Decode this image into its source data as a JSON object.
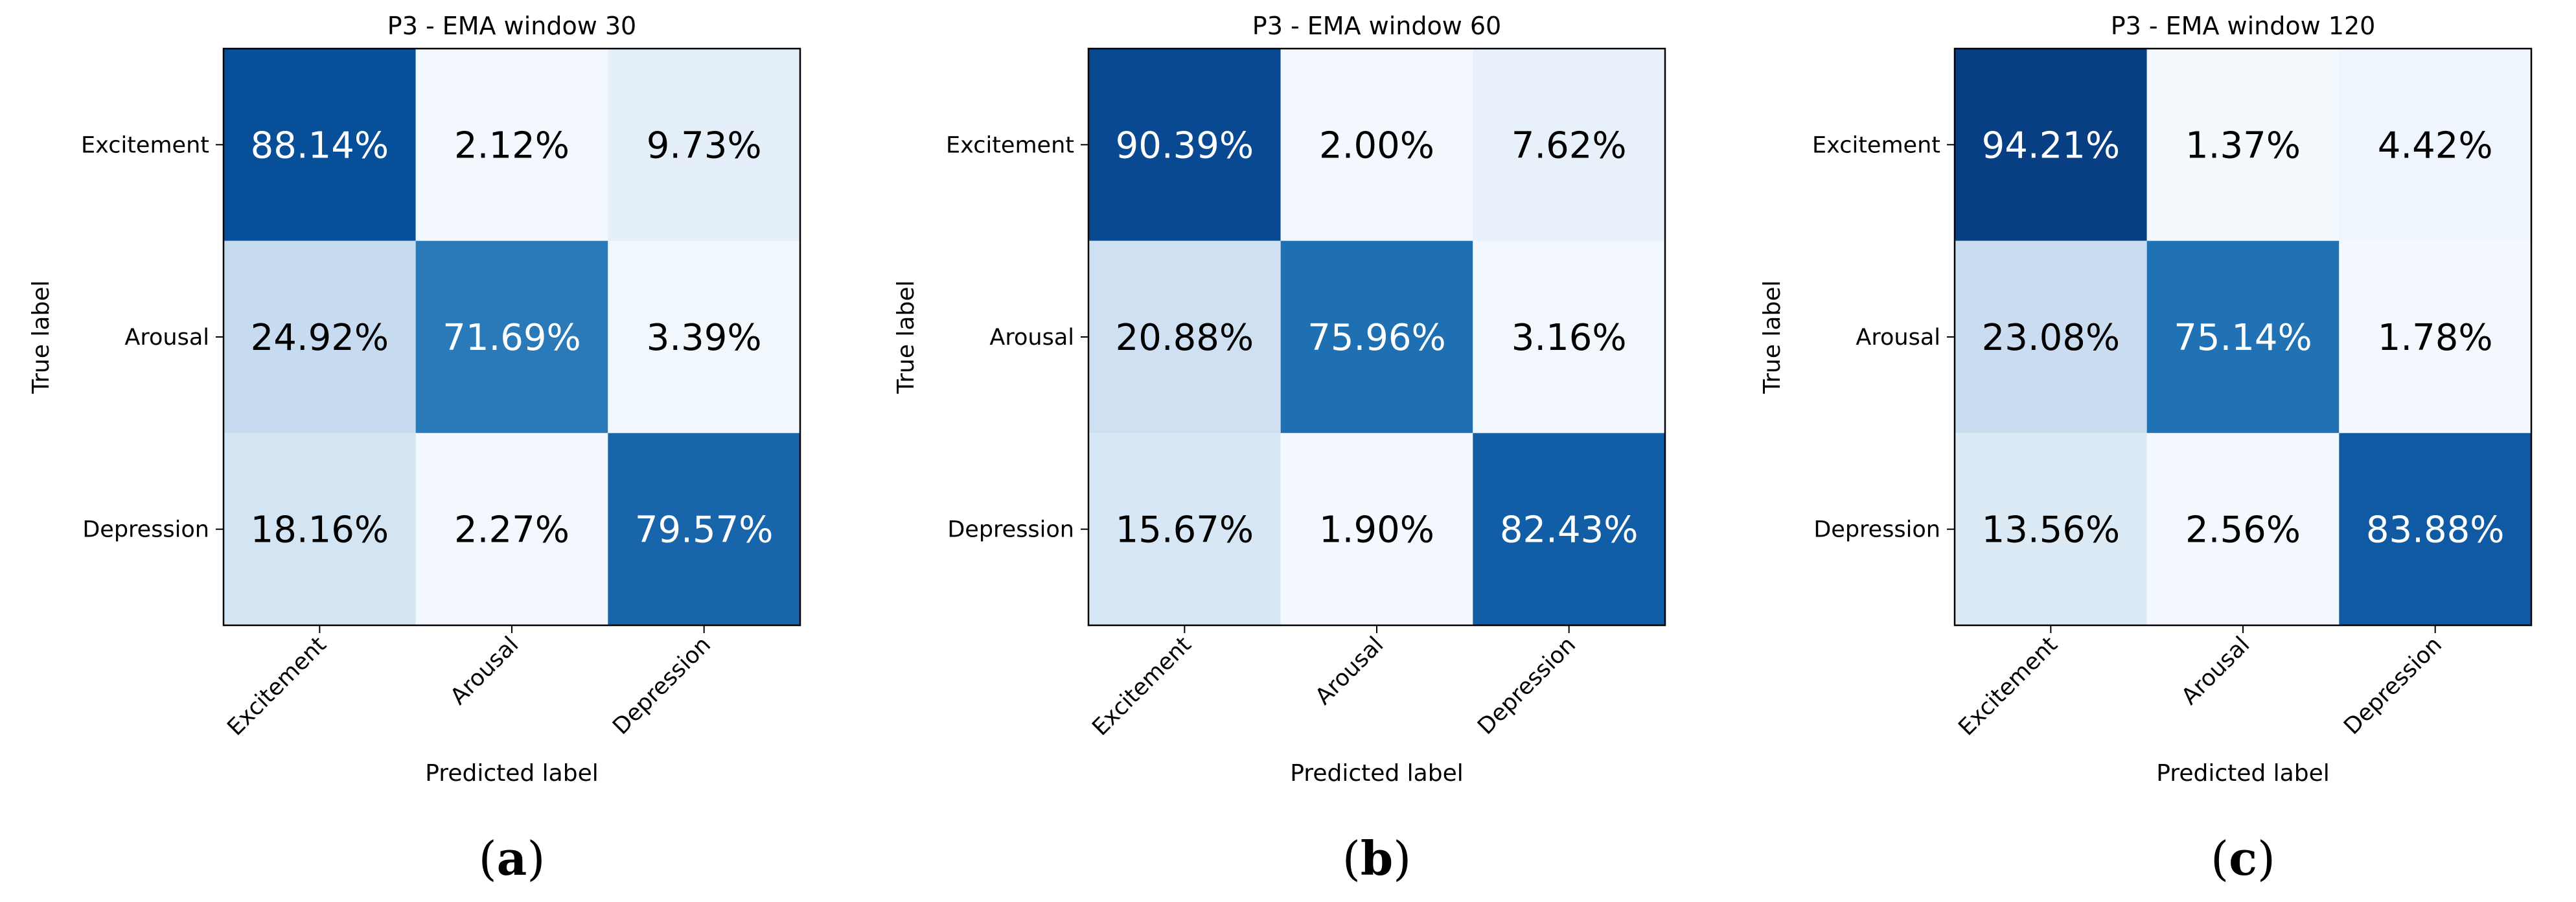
{
  "chart_data": [
    {
      "type": "heatmap",
      "caption": "a",
      "title": "P3 - EMA window 30",
      "xlabel": "Predicted label",
      "ylabel": "True label",
      "x_categories": [
        "Excitement",
        "Arousal",
        "Depression"
      ],
      "y_categories": [
        "Excitement",
        "Arousal",
        "Depression"
      ],
      "values": [
        [
          88.14,
          2.12,
          9.73
        ],
        [
          24.92,
          71.69,
          3.39
        ],
        [
          18.16,
          2.27,
          79.57
        ]
      ],
      "labels": [
        [
          "88.14%",
          "2.12%",
          "9.73%"
        ],
        [
          "24.92%",
          "71.69%",
          "3.39%"
        ],
        [
          "18.16%",
          "2.27%",
          "79.57%"
        ]
      ],
      "colormap": "Blues",
      "vmin": 0,
      "vmax": 100
    },
    {
      "type": "heatmap",
      "caption": "b",
      "title": "P3 - EMA window 60",
      "xlabel": "Predicted label",
      "ylabel": "True label",
      "x_categories": [
        "Excitement",
        "Arousal",
        "Depression"
      ],
      "y_categories": [
        "Excitement",
        "Arousal",
        "Depression"
      ],
      "values": [
        [
          90.39,
          2.0,
          7.62
        ],
        [
          20.88,
          75.96,
          3.16
        ],
        [
          15.67,
          1.9,
          82.43
        ]
      ],
      "labels": [
        [
          "90.39%",
          "2.00%",
          "7.62%"
        ],
        [
          "20.88%",
          "75.96%",
          "3.16%"
        ],
        [
          "15.67%",
          "1.90%",
          "82.43%"
        ]
      ],
      "colormap": "Blues",
      "vmin": 0,
      "vmax": 100
    },
    {
      "type": "heatmap",
      "caption": "c",
      "title": "P3 - EMA window 120",
      "xlabel": "Predicted label",
      "ylabel": "True label",
      "x_categories": [
        "Excitement",
        "Arousal",
        "Depression"
      ],
      "y_categories": [
        "Excitement",
        "Arousal",
        "Depression"
      ],
      "values": [
        [
          94.21,
          1.37,
          4.42
        ],
        [
          23.08,
          75.14,
          1.78
        ],
        [
          13.56,
          2.56,
          83.88
        ]
      ],
      "labels": [
        [
          "94.21%",
          "1.37%",
          "4.42%"
        ],
        [
          "23.08%",
          "75.14%",
          "1.78%"
        ],
        [
          "13.56%",
          "2.56%",
          "83.88%"
        ]
      ],
      "colormap": "Blues",
      "vmin": 0,
      "vmax": 100
    }
  ]
}
